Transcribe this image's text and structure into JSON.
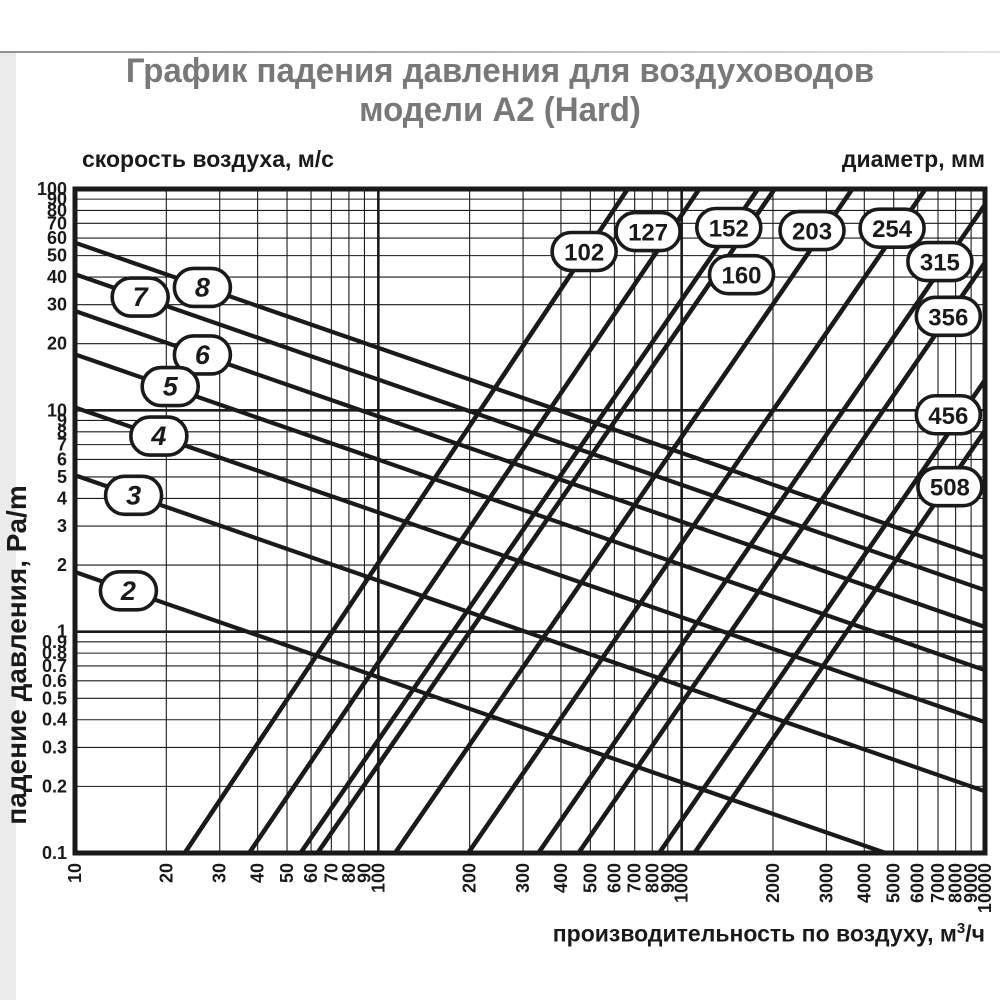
{
  "page": {
    "title_line1": "График падения давления для воздуховодов",
    "title_line2": "модели А2 (Hard)"
  },
  "chart_data": {
    "type": "line",
    "title": "График падения давления для воздуховодов модели А2 (Hard)",
    "top_left_label": "скорость воздуха, м/с",
    "top_right_label": "диаметр, мм",
    "ylabel": "падение давления, Pa/m",
    "xlabel": {
      "prefix": "производительность по воздуху, м",
      "sup": "3",
      "suffix": "/ч"
    },
    "x_scale": "log",
    "y_scale": "log",
    "xlim": [
      10,
      10000
    ],
    "ylim": [
      0.1,
      100
    ],
    "grid": "on",
    "x_ticks": [
      "10",
      "20",
      "30",
      "40",
      "50",
      "60",
      "70",
      "80",
      "90",
      "100",
      "200",
      "300",
      "400",
      "500",
      "600",
      "700",
      "800",
      "900",
      "1000",
      "2000",
      "3000",
      "4000",
      "5000",
      "6000",
      "7000",
      "8000",
      "9000",
      "10000"
    ],
    "y_ticks": [
      "100",
      "90",
      "80",
      "70",
      "60",
      "50",
      "40",
      "30",
      "20",
      "10",
      "9",
      "8",
      "7",
      "6",
      "5",
      "4",
      "3",
      "2",
      "1",
      "0.9",
      "0.8",
      "0.7",
      "0.6",
      "0.5",
      "0.4",
      "0.3",
      "0.2",
      "0.1"
    ],
    "velocity_series": [
      {
        "label": "8",
        "units": "m/s",
        "points": [
          [
            10,
            57.2
          ],
          [
            10000,
            2.15
          ]
        ],
        "label_at": [
          26.3,
          35.9
        ]
      },
      {
        "label": "7",
        "units": "m/s",
        "points": [
          [
            10,
            41.2
          ],
          [
            10000,
            1.54
          ]
        ],
        "label_at": [
          16.4,
          32.5
        ]
      },
      {
        "label": "6",
        "units": "m/s",
        "points": [
          [
            10,
            28.1
          ],
          [
            10000,
            1.05
          ]
        ],
        "label_at": [
          26.3,
          17.8
        ]
      },
      {
        "label": "5",
        "units": "m/s",
        "points": [
          [
            10,
            17.9
          ],
          [
            10000,
            0.67
          ]
        ],
        "label_at": [
          20.6,
          12.8
        ]
      },
      {
        "label": "4",
        "units": "m/s",
        "points": [
          [
            10,
            10.3
          ],
          [
            10000,
            0.39
          ]
        ],
        "label_at": [
          18.9,
          7.65
        ]
      },
      {
        "label": "3",
        "units": "m/s",
        "points": [
          [
            10,
            5.09
          ],
          [
            10000,
            0.19
          ]
        ],
        "label_at": [
          15.6,
          4.13
        ]
      },
      {
        "label": "2",
        "units": "m/s",
        "points": [
          [
            10,
            1.86
          ],
          [
            4705,
            0.1
          ]
        ],
        "label_at": [
          15.0,
          1.53
        ]
      }
    ],
    "diameter_series": [
      {
        "label": "102",
        "units": "mm",
        "points": [
          [
            23,
            0.1
          ],
          [
            664,
            100
          ]
        ],
        "label_at": [
          477,
          52.2
        ]
      },
      {
        "label": "127",
        "units": "mm",
        "points": [
          [
            37.5,
            0.1
          ],
          [
            1143,
            100
          ]
        ],
        "label_at": [
          775,
          64.2
        ]
      },
      {
        "label": "152",
        "units": "mm",
        "points": [
          [
            55.4,
            0.1
          ],
          [
            1784,
            100
          ]
        ],
        "label_at": [
          1430,
          67.0
        ]
      },
      {
        "label": "160",
        "units": "mm",
        "points": [
          [
            63,
            0.1
          ],
          [
            2026,
            100
          ]
        ],
        "label_at": [
          1575,
          41.0
        ]
      },
      {
        "label": "203",
        "units": "mm",
        "points": [
          [
            113.6,
            0.1
          ],
          [
            3653,
            100
          ]
        ],
        "label_at": [
          2690,
          64.9
        ]
      },
      {
        "label": "254",
        "units": "mm",
        "points": [
          [
            197.8,
            0.1
          ],
          [
            6364,
            100
          ]
        ],
        "label_at": [
          4940,
          66.5
        ]
      },
      {
        "label": "315",
        "units": "mm",
        "points": [
          [
            337,
            0.1
          ],
          [
            10000,
            85
          ]
        ],
        "label_at": [
          7100,
          47.0
        ]
      },
      {
        "label": "356",
        "units": "mm",
        "points": [
          [
            457,
            0.1
          ],
          [
            10000,
            46.5
          ]
        ],
        "label_at": [
          7570,
          26.6
        ]
      },
      {
        "label": "456",
        "units": "mm",
        "points": [
          [
            843,
            0.1
          ],
          [
            10000,
            13.7
          ]
        ],
        "label_at": [
          7570,
          9.55
        ]
      },
      {
        "label": "508",
        "units": "mm",
        "points": [
          [
            1102,
            0.1
          ],
          [
            10000,
            8.1
          ]
        ],
        "label_at": [
          7660,
          4.52
        ]
      }
    ],
    "colors": {
      "ink": "#1a1a1a",
      "title_gray": "#787878",
      "background": "#ffffff"
    }
  }
}
